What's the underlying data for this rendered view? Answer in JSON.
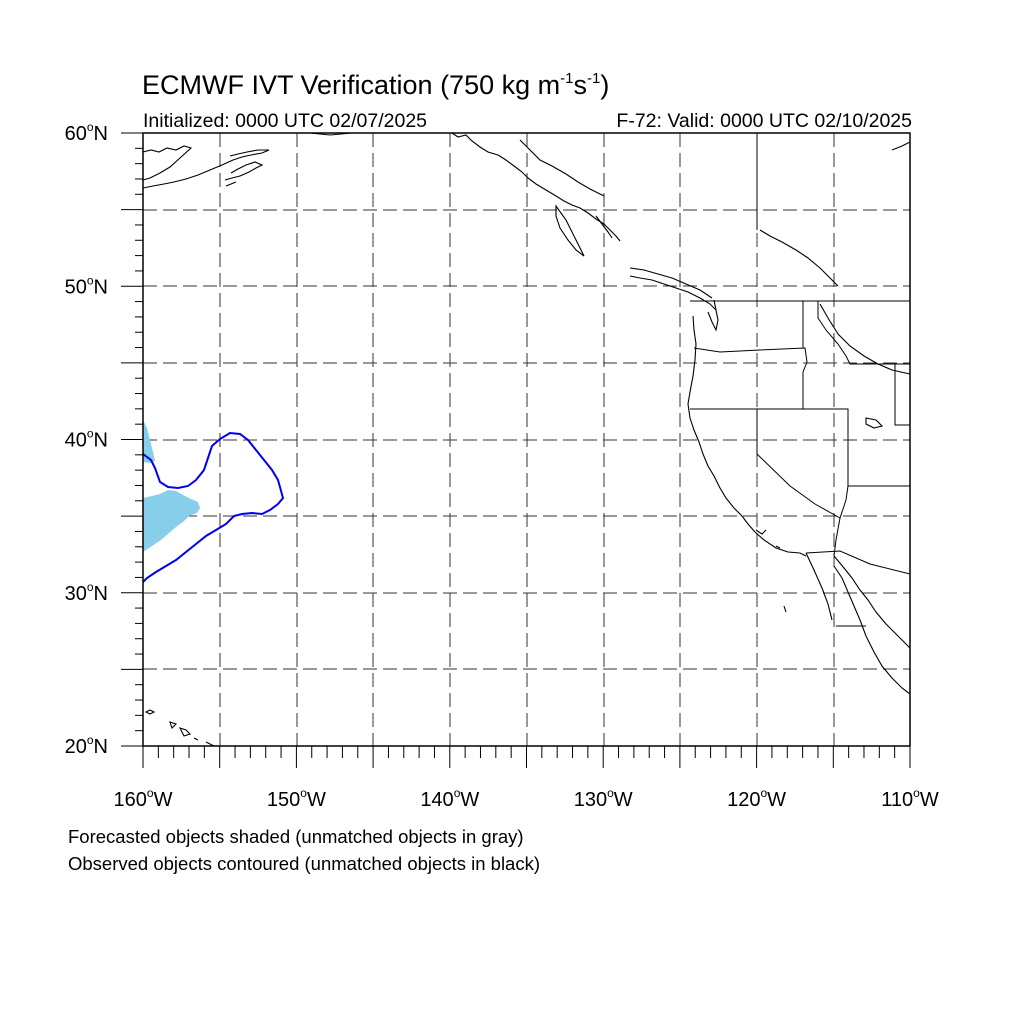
{
  "figure": {
    "title_main": "ECMWF IVT Verification (750 kg m",
    "title_unit_exp1": "-1",
    "title_unit_mid": "s",
    "title_unit_exp2": "-1",
    "title_close": ")",
    "initialized": "Initialized: 0000 UTC 02/07/2025",
    "valid": "F-72: Valid: 0000 UTC 02/10/2025",
    "caption_forecast": "Forecasted objects shaded (unmatched objects in gray)",
    "caption_observed": "Observed objects contoured (unmatched objects in black)"
  },
  "map": {
    "projection": "cylindrical equidistant",
    "lon_range": [
      -160,
      -110
    ],
    "lat_range": [
      20,
      60
    ],
    "grid": "dashed every 5 degrees",
    "lat_labels": [
      {
        "deg": "60",
        "hemi": "N"
      },
      {
        "deg": "50",
        "hemi": "N"
      },
      {
        "deg": "40",
        "hemi": "N"
      },
      {
        "deg": "30",
        "hemi": "N"
      },
      {
        "deg": "20",
        "hemi": "N"
      }
    ],
    "lon_labels": [
      {
        "deg": "160",
        "hemi": "W"
      },
      {
        "deg": "150",
        "hemi": "W"
      },
      {
        "deg": "140",
        "hemi": "W"
      },
      {
        "deg": "130",
        "hemi": "W"
      },
      {
        "deg": "120",
        "hemi": "W"
      },
      {
        "deg": "110",
        "hemi": "W"
      }
    ],
    "forecast_object_color": "#87ceeb",
    "observed_contour_color": "#0000ee",
    "coastline_color": "#000000"
  }
}
